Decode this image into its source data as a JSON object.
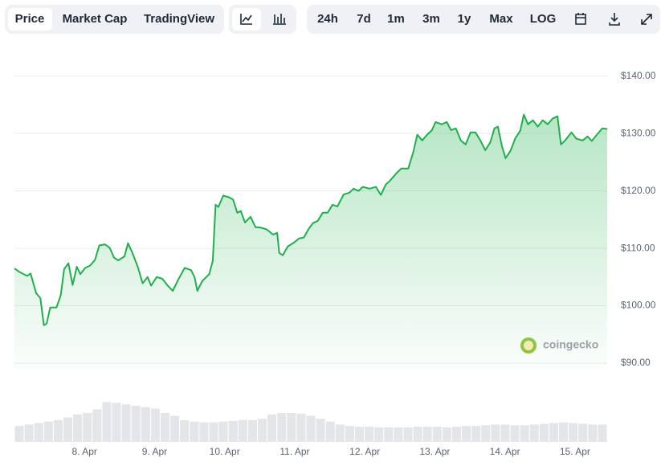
{
  "toolbar": {
    "tabs": [
      "Price",
      "Market Cap",
      "TradingView"
    ],
    "ranges": [
      "24h",
      "7d",
      "1m",
      "3m",
      "1y",
      "Max",
      "LOG"
    ]
  },
  "watermark": "coingecko",
  "chart_data": {
    "type": "line",
    "x": [
      7.0,
      7.07,
      7.18,
      7.23,
      7.31,
      7.37,
      7.42,
      7.46,
      7.51,
      7.6,
      7.66,
      7.71,
      7.77,
      7.83,
      7.89,
      7.94,
      8.01,
      8.08,
      8.15,
      8.21,
      8.29,
      8.36,
      8.42,
      8.48,
      8.57,
      8.62,
      8.68,
      8.76,
      8.83,
      8.9,
      8.95,
      9.03,
      9.11,
      9.18,
      9.26,
      9.34,
      9.43,
      9.52,
      9.57,
      9.61,
      9.68,
      9.78,
      9.83,
      9.87,
      9.91,
      9.98,
      10.06,
      10.12,
      10.18,
      10.23,
      10.29,
      10.37,
      10.44,
      10.52,
      10.6,
      10.69,
      10.75,
      10.78,
      10.83,
      10.9,
      10.99,
      11.06,
      11.13,
      11.2,
      11.26,
      11.33,
      11.4,
      11.47,
      11.54,
      11.61,
      11.7,
      11.78,
      11.84,
      11.91,
      11.97,
      12.07,
      12.16,
      12.23,
      12.3,
      12.36,
      12.46,
      12.52,
      12.62,
      12.69,
      12.75,
      12.82,
      12.89,
      12.96,
      13.01,
      13.1,
      13.17,
      13.23,
      13.3,
      13.37,
      13.44,
      13.51,
      13.58,
      13.65,
      13.72,
      13.79,
      13.85,
      13.9,
      13.96,
      14.01,
      14.08,
      14.15,
      14.22,
      14.27,
      14.33,
      14.4,
      14.47,
      14.54,
      14.61,
      14.68,
      14.75,
      14.8,
      14.86,
      14.95,
      15.02,
      15.11,
      15.18,
      15.24,
      15.32,
      15.39,
      15.46
    ],
    "series": [
      {
        "color": "#1eb04b",
        "values": [
          106.5,
          105.9,
          105.2,
          105.6,
          102.2,
          101.3,
          96.6,
          96.9,
          99.7,
          99.7,
          101.8,
          106.4,
          107.4,
          103.6,
          106.8,
          105.5,
          106.6,
          107.0,
          108.0,
          110.5,
          110.7,
          110.1,
          108.4,
          107.9,
          108.6,
          110.9,
          109.3,
          106.8,
          103.9,
          105.0,
          103.5,
          105.0,
          104.7,
          103.6,
          102.6,
          104.6,
          106.6,
          106.2,
          105.0,
          102.6,
          104.3,
          105.5,
          107.8,
          117.6,
          117.2,
          119.2,
          118.9,
          118.5,
          116.2,
          116.5,
          114.5,
          115.5,
          113.7,
          113.6,
          113.3,
          112.4,
          112.7,
          109.2,
          108.8,
          110.3,
          111.0,
          111.7,
          111.9,
          113.4,
          114.4,
          114.8,
          116.2,
          116.2,
          117.6,
          117.3,
          119.4,
          119.7,
          120.4,
          120.0,
          120.7,
          120.4,
          120.7,
          119.3,
          121.1,
          121.8,
          123.2,
          123.9,
          123.9,
          126.7,
          129.8,
          128.8,
          129.8,
          130.6,
          132.0,
          131.6,
          132.0,
          130.6,
          130.9,
          128.8,
          128.1,
          130.2,
          130.2,
          128.8,
          127.1,
          128.4,
          130.9,
          131.2,
          127.7,
          125.7,
          127.0,
          129.2,
          130.5,
          133.3,
          131.6,
          132.3,
          131.2,
          132.3,
          131.6,
          132.6,
          133.0,
          128.1,
          128.8,
          130.2,
          129.1,
          128.8,
          129.5,
          128.7,
          129.9,
          130.9,
          130.8
        ]
      }
    ],
    "volume": {
      "color": "#e3e5e8",
      "ylim": [
        0,
        100
      ],
      "values": [
        22,
        24,
        26,
        28,
        30,
        34,
        38,
        40,
        45,
        55,
        54,
        52,
        50,
        48,
        46,
        40,
        36,
        30,
        28,
        27,
        27,
        28,
        29,
        30,
        30,
        32,
        38,
        40,
        40,
        39,
        36,
        32,
        28,
        24,
        22,
        21,
        21,
        20,
        20,
        20,
        20,
        21,
        21,
        21,
        20,
        21,
        22,
        22,
        23,
        24,
        24,
        23,
        23,
        24,
        25,
        26,
        27,
        26,
        25,
        24,
        24
      ]
    },
    "xlim": [
      7.0,
      15.46
    ],
    "xticks": [
      {
        "value": 8,
        "label": "8. Apr"
      },
      {
        "value": 9,
        "label": "9. Apr"
      },
      {
        "value": 10,
        "label": "10. Apr"
      },
      {
        "value": 11,
        "label": "11. Apr"
      },
      {
        "value": 12,
        "label": "12. Apr"
      },
      {
        "value": 13,
        "label": "13. Apr"
      },
      {
        "value": 14,
        "label": "14. Apr"
      },
      {
        "value": 15,
        "label": "15. Apr"
      }
    ],
    "ylim": [
      90,
      145
    ],
    "yticks": [
      {
        "value": 90,
        "label": "$90.00"
      },
      {
        "value": 100,
        "label": "$100.00"
      },
      {
        "value": 110,
        "label": "$110.00"
      },
      {
        "value": 120,
        "label": "$120.00"
      },
      {
        "value": 130,
        "label": "$130.00"
      },
      {
        "value": 140,
        "label": "$140.00"
      }
    ],
    "grid": true
  }
}
